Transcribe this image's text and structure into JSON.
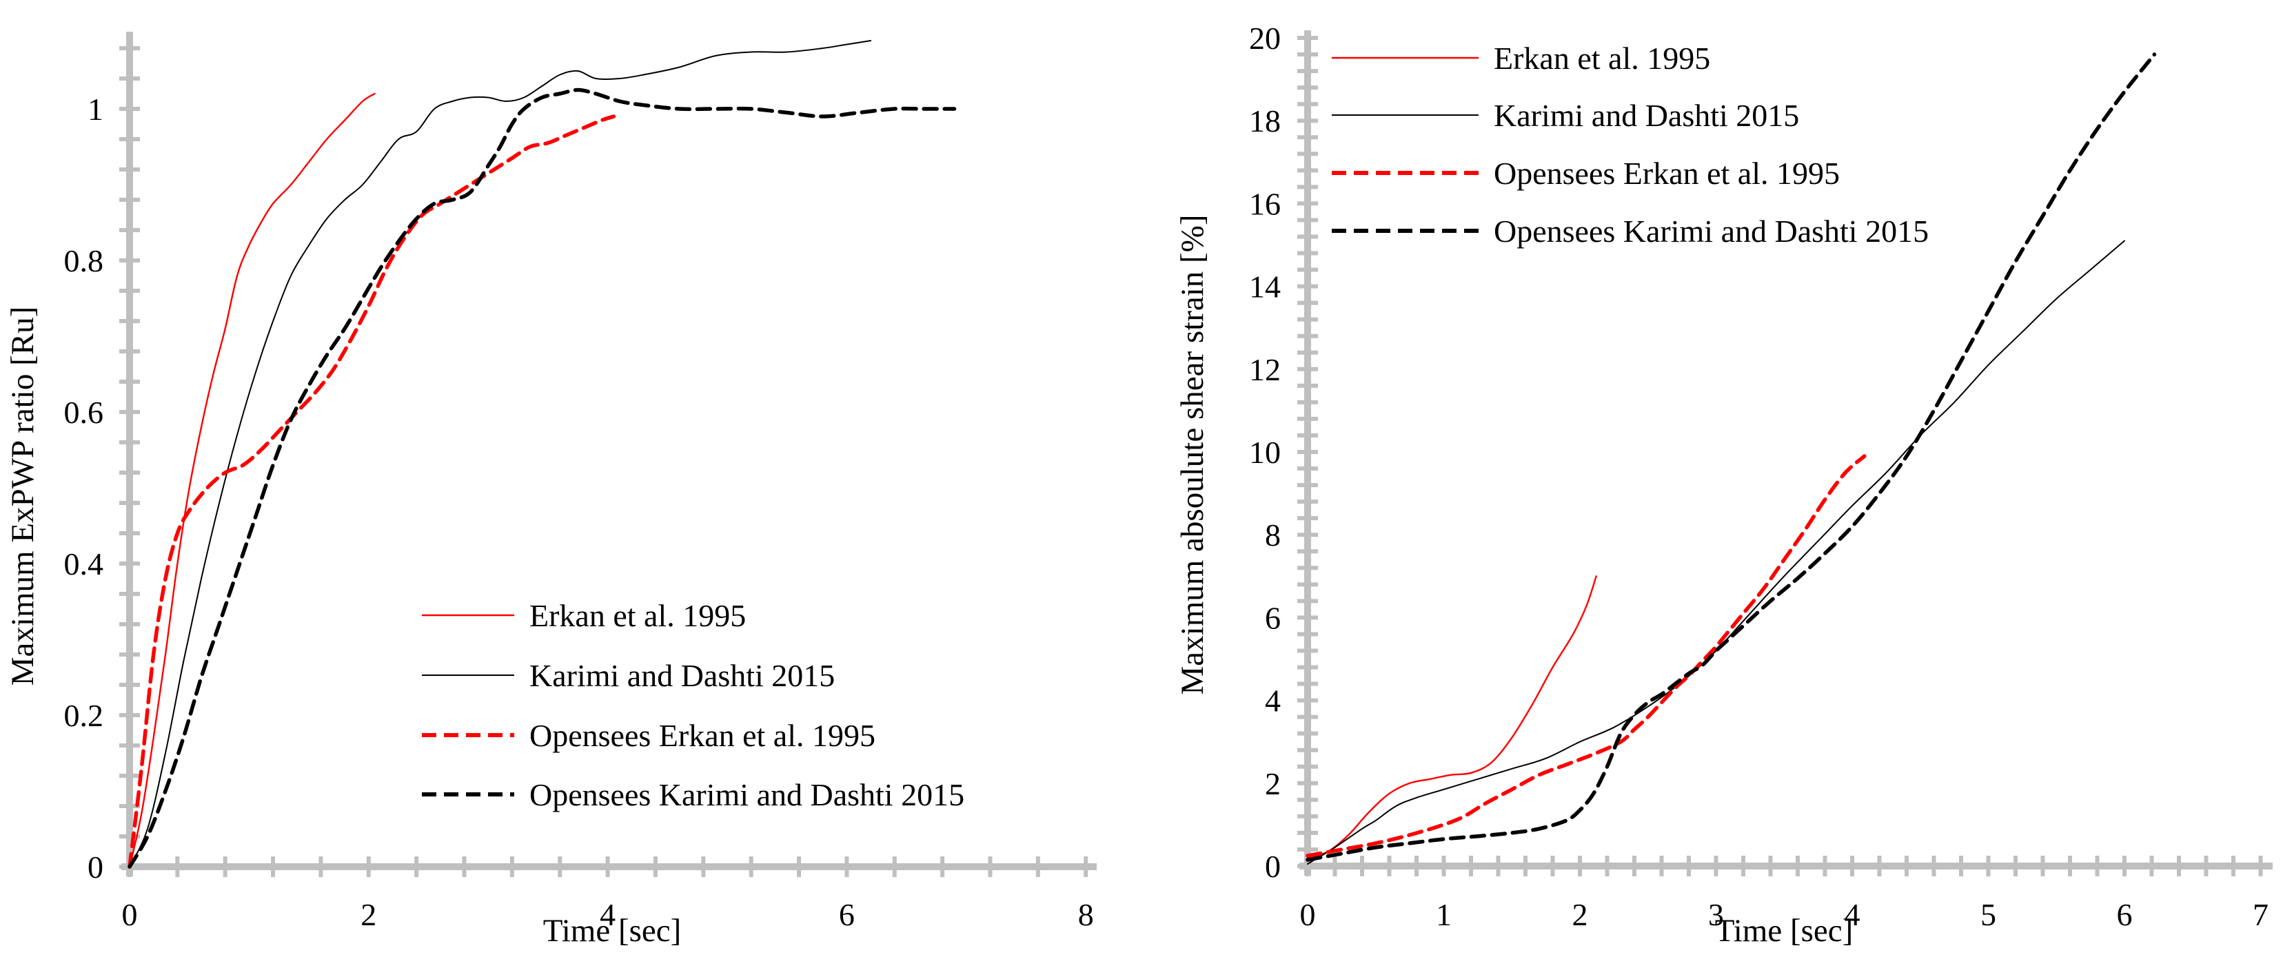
{
  "figure": {
    "background": "#FFFFFF"
  },
  "colors": {
    "axis_gray": "#BFBFBF",
    "series_red": "#FF0000",
    "series_black": "#000000"
  },
  "chart_data": [
    {
      "type": "line",
      "title": "",
      "xlabel": "Time [sec]",
      "ylabel": "Maximum ExPWP ratio [Ru]",
      "xlim": [
        0,
        8
      ],
      "ylim": [
        0,
        1.08
      ],
      "x_major_ticks": [
        0,
        2,
        4,
        6,
        8
      ],
      "x_tick_labels": [
        "0",
        "2",
        "4",
        "6",
        "8"
      ],
      "x_minor_step": 0.4,
      "y_major_ticks": [
        0,
        0.2,
        0.4,
        0.6,
        0.8,
        1
      ],
      "y_tick_labels": [
        "0",
        "0.2",
        "0.4",
        "0.6",
        "0.8",
        "1"
      ],
      "y_minor_step": 0.04,
      "grid": false,
      "legend_position": "inside-lower-middle",
      "legend": [
        "Erkan et al. 1995",
        "Karimi and Dashti 2015",
        "Opensees Erkan et al. 1995",
        "Opensees Karimi and Dashti 2015"
      ],
      "series": [
        {
          "name": "Erkan et al. 1995",
          "style": "solid",
          "color": "#FF0000",
          "width": 2.4,
          "points": [
            [
              0,
              0
            ],
            [
              0.1,
              0.07
            ],
            [
              0.2,
              0.17
            ],
            [
              0.3,
              0.28
            ],
            [
              0.4,
              0.4
            ],
            [
              0.5,
              0.5
            ],
            [
              0.6,
              0.58
            ],
            [
              0.7,
              0.65
            ],
            [
              0.8,
              0.71
            ],
            [
              0.9,
              0.78
            ],
            [
              1.0,
              0.82
            ],
            [
              1.1,
              0.85
            ],
            [
              1.2,
              0.875
            ],
            [
              1.35,
              0.9
            ],
            [
              1.5,
              0.93
            ],
            [
              1.65,
              0.96
            ],
            [
              1.8,
              0.985
            ],
            [
              1.95,
              1.01
            ],
            [
              2.05,
              1.02
            ]
          ]
        },
        {
          "name": "Karimi and Dashti 2015",
          "style": "solid",
          "color": "#000000",
          "width": 2.0,
          "points": [
            [
              0,
              0
            ],
            [
              0.15,
              0.05
            ],
            [
              0.3,
              0.15
            ],
            [
              0.45,
              0.27
            ],
            [
              0.6,
              0.38
            ],
            [
              0.75,
              0.48
            ],
            [
              0.9,
              0.57
            ],
            [
              1.05,
              0.65
            ],
            [
              1.2,
              0.72
            ],
            [
              1.35,
              0.78
            ],
            [
              1.5,
              0.82
            ],
            [
              1.65,
              0.855
            ],
            [
              1.8,
              0.88
            ],
            [
              1.95,
              0.9
            ],
            [
              2.1,
              0.93
            ],
            [
              2.25,
              0.96
            ],
            [
              2.4,
              0.97
            ],
            [
              2.55,
              1.0
            ],
            [
              2.7,
              1.01
            ],
            [
              2.85,
              1.015
            ],
            [
              3.0,
              1.015
            ],
            [
              3.15,
              1.01
            ],
            [
              3.3,
              1.015
            ],
            [
              3.45,
              1.03
            ],
            [
              3.6,
              1.045
            ],
            [
              3.75,
              1.05
            ],
            [
              3.9,
              1.04
            ],
            [
              4.1,
              1.04
            ],
            [
              4.3,
              1.045
            ],
            [
              4.6,
              1.055
            ],
            [
              4.9,
              1.07
            ],
            [
              5.2,
              1.075
            ],
            [
              5.5,
              1.075
            ],
            [
              5.8,
              1.08
            ],
            [
              6.0,
              1.085
            ],
            [
              6.2,
              1.09
            ]
          ]
        },
        {
          "name": "Opensees Erkan et al. 1995",
          "style": "dashed",
          "color": "#FF0000",
          "width": 5.5,
          "points": [
            [
              0,
              0
            ],
            [
              0.1,
              0.13
            ],
            [
              0.2,
              0.28
            ],
            [
              0.3,
              0.38
            ],
            [
              0.4,
              0.44
            ],
            [
              0.5,
              0.47
            ],
            [
              0.65,
              0.5
            ],
            [
              0.8,
              0.52
            ],
            [
              0.95,
              0.53
            ],
            [
              1.1,
              0.55
            ],
            [
              1.25,
              0.575
            ],
            [
              1.4,
              0.6
            ],
            [
              1.55,
              0.625
            ],
            [
              1.7,
              0.655
            ],
            [
              1.85,
              0.695
            ],
            [
              2.0,
              0.74
            ],
            [
              2.15,
              0.79
            ],
            [
              2.3,
              0.83
            ],
            [
              2.45,
              0.86
            ],
            [
              2.6,
              0.875
            ],
            [
              2.75,
              0.89
            ],
            [
              2.9,
              0.905
            ],
            [
              3.05,
              0.92
            ],
            [
              3.2,
              0.935
            ],
            [
              3.35,
              0.95
            ],
            [
              3.5,
              0.955
            ],
            [
              3.65,
              0.965
            ],
            [
              3.8,
              0.975
            ],
            [
              3.95,
              0.985
            ],
            [
              4.05,
              0.99
            ]
          ]
        },
        {
          "name": "Opensees Karimi and Dashti 2015",
          "style": "dashed",
          "color": "#000000",
          "width": 5.5,
          "points": [
            [
              0,
              0
            ],
            [
              0.15,
              0.04
            ],
            [
              0.3,
              0.1
            ],
            [
              0.45,
              0.17
            ],
            [
              0.6,
              0.25
            ],
            [
              0.75,
              0.32
            ],
            [
              0.9,
              0.39
            ],
            [
              1.05,
              0.46
            ],
            [
              1.2,
              0.53
            ],
            [
              1.35,
              0.59
            ],
            [
              1.5,
              0.635
            ],
            [
              1.65,
              0.675
            ],
            [
              1.8,
              0.71
            ],
            [
              1.95,
              0.75
            ],
            [
              2.1,
              0.79
            ],
            [
              2.25,
              0.825
            ],
            [
              2.4,
              0.855
            ],
            [
              2.55,
              0.875
            ],
            [
              2.7,
              0.88
            ],
            [
              2.85,
              0.89
            ],
            [
              3.0,
              0.925
            ],
            [
              3.1,
              0.95
            ],
            [
              3.2,
              0.98
            ],
            [
              3.3,
              1.0
            ],
            [
              3.45,
              1.015
            ],
            [
              3.6,
              1.02
            ],
            [
              3.75,
              1.025
            ],
            [
              3.9,
              1.02
            ],
            [
              4.1,
              1.01
            ],
            [
              4.3,
              1.005
            ],
            [
              4.6,
              1.0
            ],
            [
              4.9,
              1.0
            ],
            [
              5.2,
              1.0
            ],
            [
              5.5,
              0.995
            ],
            [
              5.8,
              0.99
            ],
            [
              6.1,
              0.995
            ],
            [
              6.4,
              1.0
            ],
            [
              6.65,
              1.0
            ],
            [
              6.9,
              1.0
            ]
          ]
        }
      ]
    },
    {
      "type": "line",
      "title": "",
      "xlabel": "Time [sec]",
      "ylabel": "Maximum absoulute shear strain [%]",
      "xlim": [
        0,
        7
      ],
      "ylim": [
        0,
        20
      ],
      "x_major_ticks": [
        0,
        1,
        2,
        3,
        4,
        5,
        6,
        7
      ],
      "x_tick_labels": [
        "0",
        "1",
        "2",
        "3",
        "4",
        "5",
        "6",
        "7"
      ],
      "x_minor_step": 0.2,
      "y_major_ticks": [
        0,
        2,
        4,
        6,
        8,
        10,
        12,
        14,
        16,
        18,
        20
      ],
      "y_tick_labels": [
        "0",
        "2",
        "4",
        "6",
        "8",
        "10",
        "12",
        "14",
        "16",
        "18",
        "20"
      ],
      "y_minor_step": 0.4,
      "grid": false,
      "legend_position": "inside-upper-left",
      "legend": [
        "Erkan et al. 1995",
        "Karimi and Dashti 2015",
        "Opensees Erkan et al. 1995",
        "Opensees Karimi and Dashti 2015"
      ],
      "series": [
        {
          "name": "Erkan et al. 1995",
          "style": "solid",
          "color": "#FF0000",
          "width": 2.4,
          "points": [
            [
              0,
              0.2
            ],
            [
              0.15,
              0.35
            ],
            [
              0.3,
              0.75
            ],
            [
              0.45,
              1.3
            ],
            [
              0.6,
              1.75
            ],
            [
              0.75,
              2.0
            ],
            [
              0.9,
              2.1
            ],
            [
              1.05,
              2.2
            ],
            [
              1.2,
              2.25
            ],
            [
              1.35,
              2.5
            ],
            [
              1.5,
              3.1
            ],
            [
              1.65,
              3.9
            ],
            [
              1.8,
              4.8
            ],
            [
              1.95,
              5.6
            ],
            [
              2.05,
              6.3
            ],
            [
              2.12,
              7.0
            ]
          ]
        },
        {
          "name": "Karimi and Dashti 2015",
          "style": "solid",
          "color": "#000000",
          "width": 2.0,
          "points": [
            [
              0,
              0.05
            ],
            [
              0.2,
              0.45
            ],
            [
              0.4,
              0.9
            ],
            [
              0.5,
              1.1
            ],
            [
              0.65,
              1.45
            ],
            [
              0.8,
              1.65
            ],
            [
              1.0,
              1.85
            ],
            [
              1.25,
              2.1
            ],
            [
              1.5,
              2.35
            ],
            [
              1.75,
              2.6
            ],
            [
              2.0,
              3.0
            ],
            [
              2.25,
              3.35
            ],
            [
              2.5,
              3.85
            ],
            [
              2.75,
              4.45
            ],
            [
              3.0,
              5.2
            ],
            [
              3.25,
              6.1
            ],
            [
              3.5,
              7.0
            ],
            [
              3.75,
              7.85
            ],
            [
              4.0,
              8.7
            ],
            [
              4.25,
              9.5
            ],
            [
              4.5,
              10.4
            ],
            [
              4.75,
              11.2
            ],
            [
              5.0,
              12.1
            ],
            [
              5.25,
              12.9
            ],
            [
              5.5,
              13.7
            ],
            [
              5.75,
              14.4
            ],
            [
              6.0,
              15.1
            ]
          ]
        },
        {
          "name": "Opensees Erkan et al. 1995",
          "style": "dashed",
          "color": "#FF0000",
          "width": 5.5,
          "points": [
            [
              0,
              0.25
            ],
            [
              0.25,
              0.4
            ],
            [
              0.5,
              0.55
            ],
            [
              0.75,
              0.75
            ],
            [
              1.0,
              1.0
            ],
            [
              1.15,
              1.2
            ],
            [
              1.3,
              1.5
            ],
            [
              1.5,
              1.85
            ],
            [
              1.7,
              2.2
            ],
            [
              1.9,
              2.45
            ],
            [
              2.1,
              2.7
            ],
            [
              2.3,
              3.0
            ],
            [
              2.4,
              3.3
            ],
            [
              2.5,
              3.6
            ],
            [
              2.6,
              3.95
            ],
            [
              2.7,
              4.3
            ],
            [
              2.8,
              4.6
            ],
            [
              2.9,
              4.95
            ],
            [
              3.0,
              5.3
            ],
            [
              3.1,
              5.7
            ],
            [
              3.2,
              6.1
            ],
            [
              3.35,
              6.7
            ],
            [
              3.5,
              7.4
            ],
            [
              3.65,
              8.1
            ],
            [
              3.8,
              8.85
            ],
            [
              3.95,
              9.5
            ],
            [
              4.09,
              9.9
            ]
          ]
        },
        {
          "name": "Opensees Karimi and Dashti 2015",
          "style": "dashed",
          "color": "#000000",
          "width": 5.5,
          "points": [
            [
              0,
              0.15
            ],
            [
              0.25,
              0.3
            ],
            [
              0.5,
              0.45
            ],
            [
              0.75,
              0.55
            ],
            [
              1.0,
              0.65
            ],
            [
              1.25,
              0.72
            ],
            [
              1.5,
              0.8
            ],
            [
              1.7,
              0.9
            ],
            [
              1.9,
              1.1
            ],
            [
              2.0,
              1.35
            ],
            [
              2.1,
              1.75
            ],
            [
              2.2,
              2.4
            ],
            [
              2.3,
              3.2
            ],
            [
              2.4,
              3.65
            ],
            [
              2.5,
              3.95
            ],
            [
              2.6,
              4.15
            ],
            [
              2.7,
              4.4
            ],
            [
              2.8,
              4.65
            ],
            [
              2.9,
              4.85
            ],
            [
              3.0,
              5.2
            ],
            [
              3.1,
              5.5
            ],
            [
              3.2,
              5.8
            ],
            [
              3.4,
              6.4
            ],
            [
              3.6,
              6.95
            ],
            [
              3.8,
              7.55
            ],
            [
              4.0,
              8.2
            ],
            [
              4.2,
              9.0
            ],
            [
              4.4,
              9.9
            ],
            [
              4.6,
              11.0
            ],
            [
              4.8,
              12.2
            ],
            [
              5.0,
              13.4
            ],
            [
              5.2,
              14.6
            ],
            [
              5.4,
              15.7
            ],
            [
              5.6,
              16.8
            ],
            [
              5.8,
              17.8
            ],
            [
              6.0,
              18.7
            ],
            [
              6.22,
              19.6
            ]
          ]
        }
      ]
    }
  ]
}
